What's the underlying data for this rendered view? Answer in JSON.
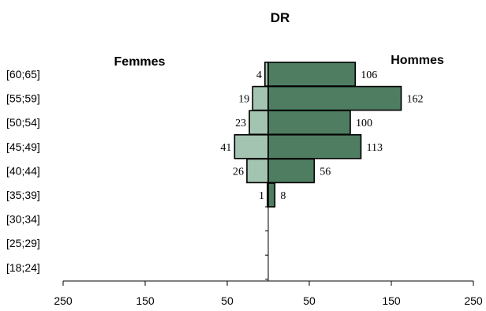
{
  "chart_data": {
    "type": "bar",
    "orientation": "horizontal",
    "title": "DR",
    "categories": [
      "[60;65]",
      "[55;59]",
      "[50;54]",
      "[45;49]",
      "[40;44]",
      "[35;39]",
      "[30;34]",
      "[25;29]",
      "[18;24]"
    ],
    "series": [
      {
        "name": "Femmes",
        "side": "left",
        "color": "#a3c4b0",
        "values": [
          4,
          19,
          23,
          41,
          26,
          1,
          0,
          0,
          0
        ]
      },
      {
        "name": "Hommes",
        "side": "right",
        "color": "#4e7d62",
        "values": [
          106,
          162,
          100,
          113,
          56,
          8,
          0,
          0,
          0
        ]
      }
    ],
    "x_tick_labels": [
      "250",
      "150",
      "50",
      "50",
      "150",
      "250"
    ],
    "xlim": [
      -250,
      250
    ],
    "grid": false,
    "legend": "labels above bars"
  }
}
